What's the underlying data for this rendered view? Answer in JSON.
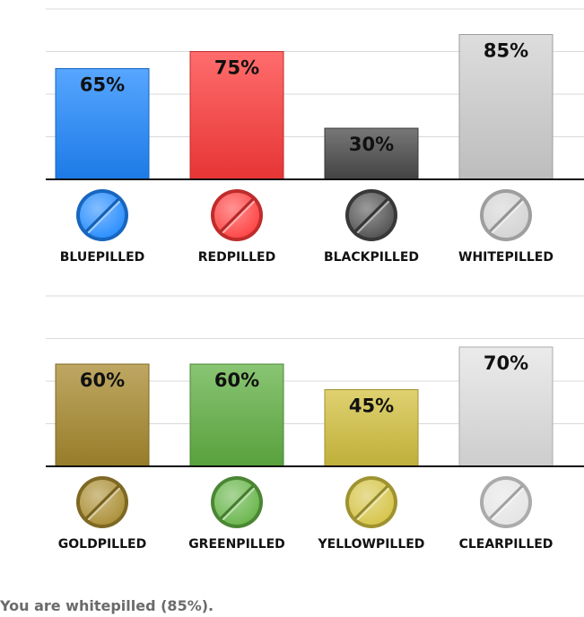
{
  "chart_data": [
    {
      "type": "bar",
      "categories": [
        "BLUEPILLED",
        "REDPILLED",
        "BLACKPILLED",
        "WHITEPILLED"
      ],
      "values": [
        65,
        75,
        30,
        85
      ],
      "labels": [
        "65%",
        "75%",
        "30%",
        "85%"
      ],
      "colors": [
        "#1f88ff",
        "#ff3b3b",
        "#4a4a4a",
        "#d2d2d2"
      ],
      "ylim": [
        0,
        100
      ],
      "grid": true,
      "legend": "none"
    },
    {
      "type": "bar",
      "categories": [
        "GOLDPILLED",
        "GREENPILLED",
        "YELLOWPILLED",
        "CLEARPILLED"
      ],
      "values": [
        60,
        60,
        45,
        70
      ],
      "labels": [
        "60%",
        "60%",
        "45%",
        "70%"
      ],
      "colors": [
        "#a88a2e",
        "#62b244",
        "#d4c240",
        "#e4e4e4"
      ],
      "ylim": [
        0,
        100
      ],
      "grid": true,
      "legend": "none"
    }
  ],
  "result": {
    "text": "You are whitepilled (85%)."
  }
}
